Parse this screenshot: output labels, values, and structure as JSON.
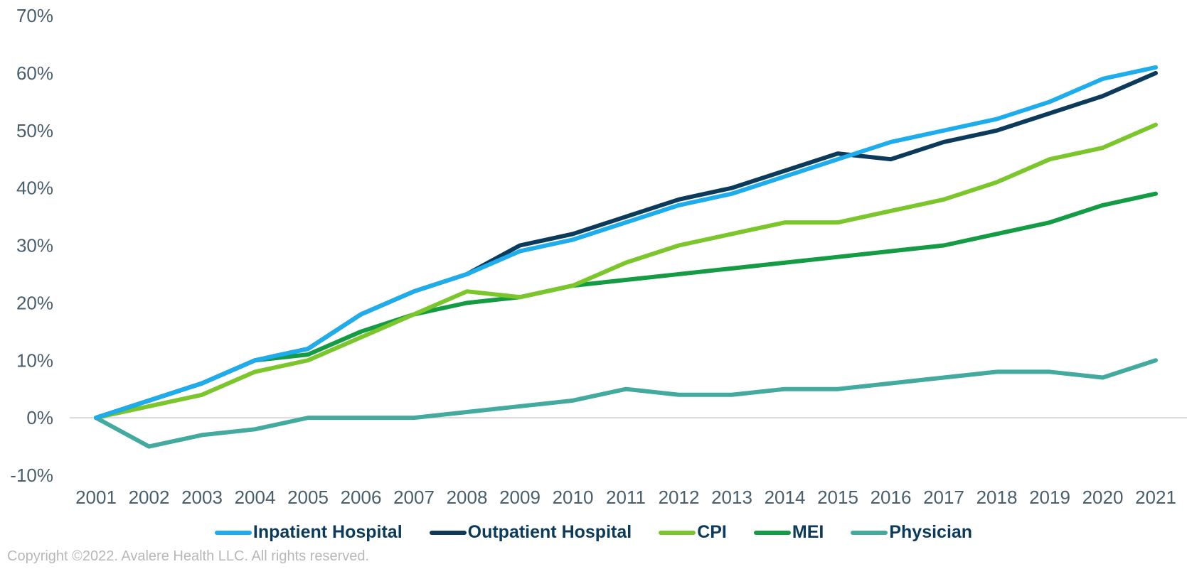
{
  "chart_data": {
    "type": "line",
    "title": "",
    "xlabel": "",
    "ylabel": "",
    "x": [
      "2001",
      "2002",
      "2003",
      "2004",
      "2005",
      "2006",
      "2007",
      "2008",
      "2009",
      "2010",
      "2011",
      "2012",
      "2013",
      "2014",
      "2015",
      "2016",
      "2017",
      "2018",
      "2019",
      "2020",
      "2021"
    ],
    "ylim": [
      -10,
      70
    ],
    "yticks": [
      -10,
      0,
      10,
      20,
      30,
      40,
      50,
      60,
      70
    ],
    "ytick_labels": [
      "-10%",
      "0%",
      "10%",
      "20%",
      "30%",
      "40%",
      "50%",
      "60%",
      "70%"
    ],
    "grid": false,
    "zero_line": true,
    "legend_position": "bottom",
    "series": [
      {
        "name": "Inpatient Hospital",
        "color": "#1dacec",
        "values": [
          0,
          3,
          6,
          10,
          12,
          18,
          22,
          25,
          29,
          31,
          34,
          37,
          39,
          42,
          45,
          48,
          50,
          52,
          55,
          59,
          61
        ]
      },
      {
        "name": "Outpatient Hospital",
        "color": "#0b3a5a",
        "values": [
          0,
          3,
          6,
          10,
          12,
          18,
          22,
          25,
          30,
          32,
          35,
          38,
          40,
          43,
          46,
          45,
          48,
          50,
          53,
          56,
          60
        ]
      },
      {
        "name": "CPI",
        "color": "#7bc62a",
        "values": [
          0,
          2,
          4,
          8,
          10,
          14,
          18,
          22,
          21,
          23,
          27,
          30,
          32,
          34,
          34,
          36,
          38,
          41,
          45,
          47,
          51
        ]
      },
      {
        "name": "MEI",
        "color": "#149c45",
        "values": [
          0,
          3,
          6,
          10,
          11,
          15,
          18,
          20,
          21,
          23,
          24,
          25,
          26,
          27,
          28,
          29,
          30,
          32,
          34,
          37,
          39
        ]
      },
      {
        "name": "Physician",
        "color": "#42aa9e",
        "values": [
          0,
          -5,
          -3,
          -2,
          0,
          0,
          0,
          1,
          2,
          3,
          5,
          4,
          4,
          5,
          5,
          6,
          7,
          8,
          8,
          7,
          10
        ]
      }
    ]
  },
  "footer": {
    "copyright": "Copyright ©2022. Avalere Health LLC. All rights reserved."
  }
}
